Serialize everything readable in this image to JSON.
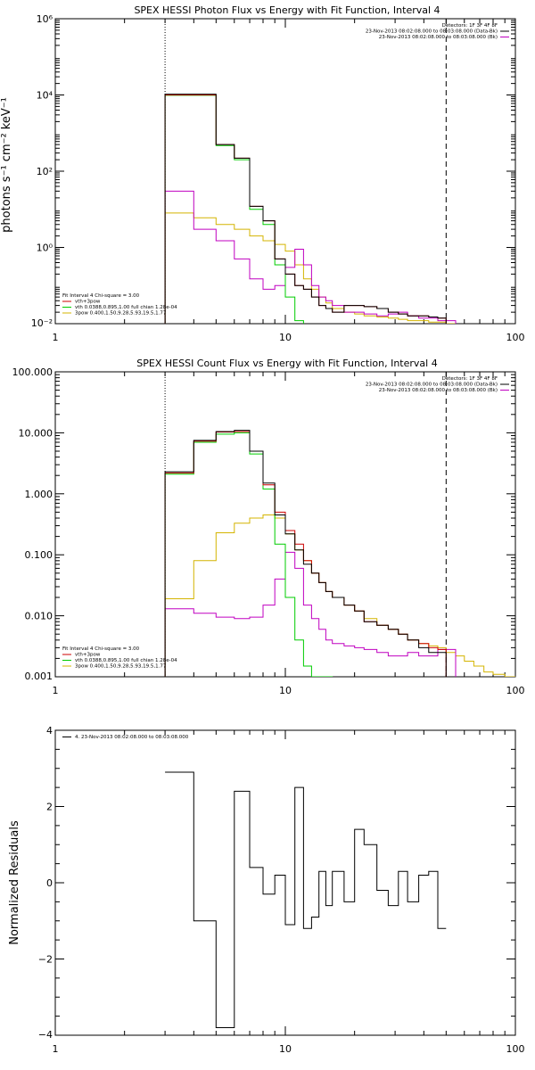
{
  "chart_data": [
    {
      "type": "line",
      "title": "SPEX HESSI Photon Flux vs Energy with Fit Function, Interval 4",
      "ylabel": "photons s⁻¹ cm⁻² keV⁻¹",
      "xlabel": "",
      "xscale": "log",
      "yscale": "log",
      "xlim": [
        1,
        100
      ],
      "ylim": [
        0.01,
        1000000
      ],
      "xticks": [
        1,
        10,
        100
      ],
      "xtick_labels": [
        "1",
        "10",
        "100"
      ],
      "yticks": [
        0.01,
        1,
        100,
        10000,
        1000000
      ],
      "ytick_labels": [
        "10⁻²",
        "10⁰",
        "10²",
        "10⁴",
        "10⁶"
      ],
      "grid": false,
      "vlines": [
        {
          "x": 3,
          "style": "dotted"
        },
        {
          "x": 50,
          "style": "dashed"
        }
      ],
      "legend_top": {
        "lines": [
          {
            "text": "Detectors: 1F 3F 4F 8F",
            "color": "#000000"
          },
          {
            "text": "23-Nov-2013 08:02:08.000 to 08:03:08.000 (Data-Bk)",
            "color": "#000000"
          },
          {
            "text": "23-Nov-2013 08:02:08.000 to 08:03:08.000 (Bk)",
            "color": "#c000c0"
          }
        ]
      },
      "legend_bottom": {
        "lines": [
          {
            "text": "Fit Interval 4   Chi-square = 3.00",
            "color": "#000000"
          },
          {
            "text": "vth+3pow",
            "color": "#cc0000"
          },
          {
            "text": "vth 0.0388,0.895,1.00  full chian 1.28e-04",
            "color": "#00cc00"
          },
          {
            "text": "3pow 0.400,1.50,9.28,5.93,19.5,1.77",
            "color": "#d4b400"
          }
        ]
      },
      "edges": [
        3,
        4,
        5,
        6,
        7,
        8,
        9,
        10,
        11,
        12,
        13,
        14,
        15,
        16,
        18,
        20,
        22,
        25,
        28,
        31,
        34,
        38,
        42,
        46,
        50,
        55,
        60,
        66
      ],
      "series": [
        {
          "name": "Data-Bk",
          "color": "#000000",
          "values": [
            10500,
            10500,
            500,
            220,
            12,
            5,
            0.5,
            0.2,
            0.1,
            0.08,
            0.05,
            0.03,
            0.025,
            0.02,
            0.03,
            0.03,
            0.028,
            0.025,
            0.02,
            0.018,
            0.016,
            0.016,
            0.015,
            0.014,
            null,
            null,
            null
          ]
        },
        {
          "name": "vth+3pow",
          "color": "#cc0000",
          "values": [
            10000,
            10000,
            500,
            220,
            12,
            5,
            0.5,
            0.2,
            0.1,
            0.08,
            0.05,
            0.03,
            0.025,
            0.02,
            0.03,
            0.03,
            0.028,
            0.025,
            0.02,
            0.018,
            0.016,
            0.016,
            0.015,
            0.014,
            null,
            null,
            null
          ]
        },
        {
          "name": "vth",
          "color": "#00cc00",
          "values": [
            9800,
            9800,
            470,
            200,
            10,
            4,
            0.35,
            0.05,
            0.012,
            0.008,
            0.008,
            0.008,
            0.008,
            null,
            null,
            null,
            null,
            null,
            null,
            null,
            null,
            null,
            null,
            null,
            null,
            null,
            null
          ]
        },
        {
          "name": "Bk",
          "color": "#c000c0",
          "values": [
            30,
            3,
            1.5,
            0.5,
            0.15,
            0.08,
            0.1,
            0.3,
            0.9,
            0.35,
            0.1,
            0.05,
            0.04,
            0.03,
            0.02,
            0.02,
            0.018,
            0.016,
            0.018,
            0.02,
            0.016,
            0.014,
            0.014,
            0.012,
            0.012,
            null,
            null
          ]
        },
        {
          "name": "3pow",
          "color": "#d4b400",
          "values": [
            8,
            6,
            4,
            3,
            2,
            1.5,
            1.2,
            0.8,
            0.35,
            0.15,
            0.08,
            0.05,
            0.035,
            0.025,
            0.02,
            0.018,
            0.016,
            0.015,
            0.014,
            0.013,
            0.012,
            0.012,
            0.011,
            0.011,
            0.01,
            0.009,
            0.008
          ]
        }
      ]
    },
    {
      "type": "line",
      "title": "SPEX HESSI Count Flux vs Energy with Fit Function, Interval 4",
      "ylabel": "",
      "xlabel": "",
      "xscale": "log",
      "yscale": "log",
      "xlim": [
        1,
        100
      ],
      "ylim": [
        0.001,
        100
      ],
      "xticks": [
        1,
        10,
        100
      ],
      "xtick_labels": [
        "1",
        "10",
        "100"
      ],
      "yticks": [
        0.001,
        0.01,
        0.1,
        1,
        10,
        100
      ],
      "ytick_labels": [
        "0.001",
        "0.010",
        "0.100",
        "1.000",
        "10.000",
        "100.000"
      ],
      "grid": false,
      "vlines": [
        {
          "x": 3,
          "style": "dotted"
        },
        {
          "x": 50,
          "style": "dashed"
        }
      ],
      "legend_top": {
        "lines": [
          {
            "text": "Detectors: 1F 3F 4F 8F",
            "color": "#000000"
          },
          {
            "text": "23-Nov-2013 08:02:08.000 to 08:03:08.000 (Data-Bk)",
            "color": "#000000"
          },
          {
            "text": "23-Nov-2013 08:02:08.000 to 08:03:08.000 (Bk)",
            "color": "#c000c0"
          }
        ]
      },
      "legend_bottom": {
        "lines": [
          {
            "text": "Fit Interval 4   Chi-square = 3.00",
            "color": "#000000"
          },
          {
            "text": "vth+3pow",
            "color": "#cc0000"
          },
          {
            "text": "vth 0.0388,0.895,1.00  full chian 1.28e-04",
            "color": "#00cc00"
          },
          {
            "text": "3pow 0.400,1.50,9.28,5.93,19.5,1.77",
            "color": "#d4b400"
          }
        ]
      },
      "edges": [
        3,
        4,
        5,
        6,
        7,
        8,
        9,
        10,
        11,
        12,
        13,
        14,
        15,
        16,
        18,
        20,
        22,
        25,
        28,
        31,
        34,
        38,
        42,
        46,
        50,
        55,
        60,
        66,
        73,
        80,
        90,
        100
      ],
      "series": [
        {
          "name": "Data-Bk",
          "color": "#000000",
          "values": [
            2.3,
            7.5,
            10.5,
            11,
            5,
            1.5,
            0.45,
            0.22,
            0.12,
            0.07,
            0.05,
            0.035,
            0.025,
            0.02,
            0.015,
            0.012,
            0.008,
            0.007,
            0.006,
            0.005,
            0.004,
            0.003,
            0.0025,
            0.0025,
            null,
            null,
            null,
            null,
            null,
            null,
            null
          ]
        },
        {
          "name": "vth+3pow",
          "color": "#cc0000",
          "values": [
            2.2,
            7.3,
            10.3,
            10.5,
            5,
            1.4,
            0.5,
            0.25,
            0.15,
            0.08,
            0.05,
            0.035,
            0.025,
            0.02,
            0.015,
            0.012,
            0.008,
            0.007,
            0.006,
            0.005,
            0.004,
            0.0035,
            0.003,
            0.0028,
            null,
            null,
            null,
            null,
            null,
            null,
            null
          ]
        },
        {
          "name": "vth",
          "color": "#00cc00",
          "values": [
            2.1,
            7,
            9.5,
            10,
            4.5,
            1.2,
            0.15,
            0.02,
            0.004,
            0.0015,
            0.001,
            0.001,
            0.001,
            null,
            null,
            null,
            null,
            null,
            null,
            null,
            null,
            null,
            null,
            null,
            null,
            null,
            null,
            null,
            null,
            null,
            null
          ]
        },
        {
          "name": "Bk",
          "color": "#c000c0",
          "values": [
            0.013,
            0.011,
            0.0095,
            0.009,
            0.0095,
            0.015,
            0.04,
            0.11,
            0.06,
            0.015,
            0.009,
            0.006,
            0.004,
            0.0035,
            0.0032,
            0.003,
            0.0028,
            0.0025,
            0.0022,
            0.0022,
            0.0025,
            0.0022,
            0.0022,
            0.0028,
            0.0028,
            null,
            null,
            null,
            null,
            null,
            null
          ]
        },
        {
          "name": "3pow",
          "color": "#d4b400",
          "values": [
            0.019,
            0.08,
            0.23,
            0.33,
            0.4,
            0.45,
            0.4,
            0.22,
            0.12,
            0.08,
            0.05,
            0.035,
            0.025,
            0.02,
            0.015,
            0.012,
            0.009,
            0.007,
            0.006,
            0.005,
            0.004,
            0.0035,
            0.0032,
            0.003,
            0.0025,
            0.0022,
            0.0018,
            0.0015,
            0.0012,
            0.0011,
            0.001
          ]
        }
      ]
    },
    {
      "type": "line",
      "title": "",
      "ylabel": "Normalized Residuals",
      "xlabel": "",
      "xscale": "log",
      "yscale": "linear",
      "xlim": [
        1,
        100
      ],
      "ylim": [
        -4,
        4
      ],
      "xticks": [
        1,
        10,
        100
      ],
      "xtick_labels": [
        "1",
        "10",
        "100"
      ],
      "yticks": [
        -4,
        -2,
        0,
        2,
        4
      ],
      "ytick_labels": [
        "−4",
        "−2",
        "0",
        "2",
        "4"
      ],
      "grid": false,
      "legend_top": {
        "lines": [
          {
            "text": "4. 23-Nov-2013 08:02:08.000 to 08:03:08.000",
            "color": "#000000"
          }
        ]
      },
      "edges": [
        3,
        4,
        5,
        6,
        7,
        8,
        9,
        10,
        11,
        12,
        13,
        14,
        15,
        16,
        18,
        20,
        22,
        25,
        28,
        31,
        34,
        38,
        42,
        46,
        50
      ],
      "series": [
        {
          "name": "",
          "color": "#000000",
          "values": [
            2.9,
            -1.0,
            -3.8,
            2.4,
            0.4,
            -0.3,
            0.2,
            -1.1,
            2.5,
            -1.2,
            -0.9,
            0.3,
            -0.6,
            0.3,
            -0.5,
            1.4,
            1.0,
            -0.2,
            -0.6,
            0.3,
            -0.5,
            0.2,
            0.3,
            -1.2
          ]
        }
      ]
    }
  ]
}
